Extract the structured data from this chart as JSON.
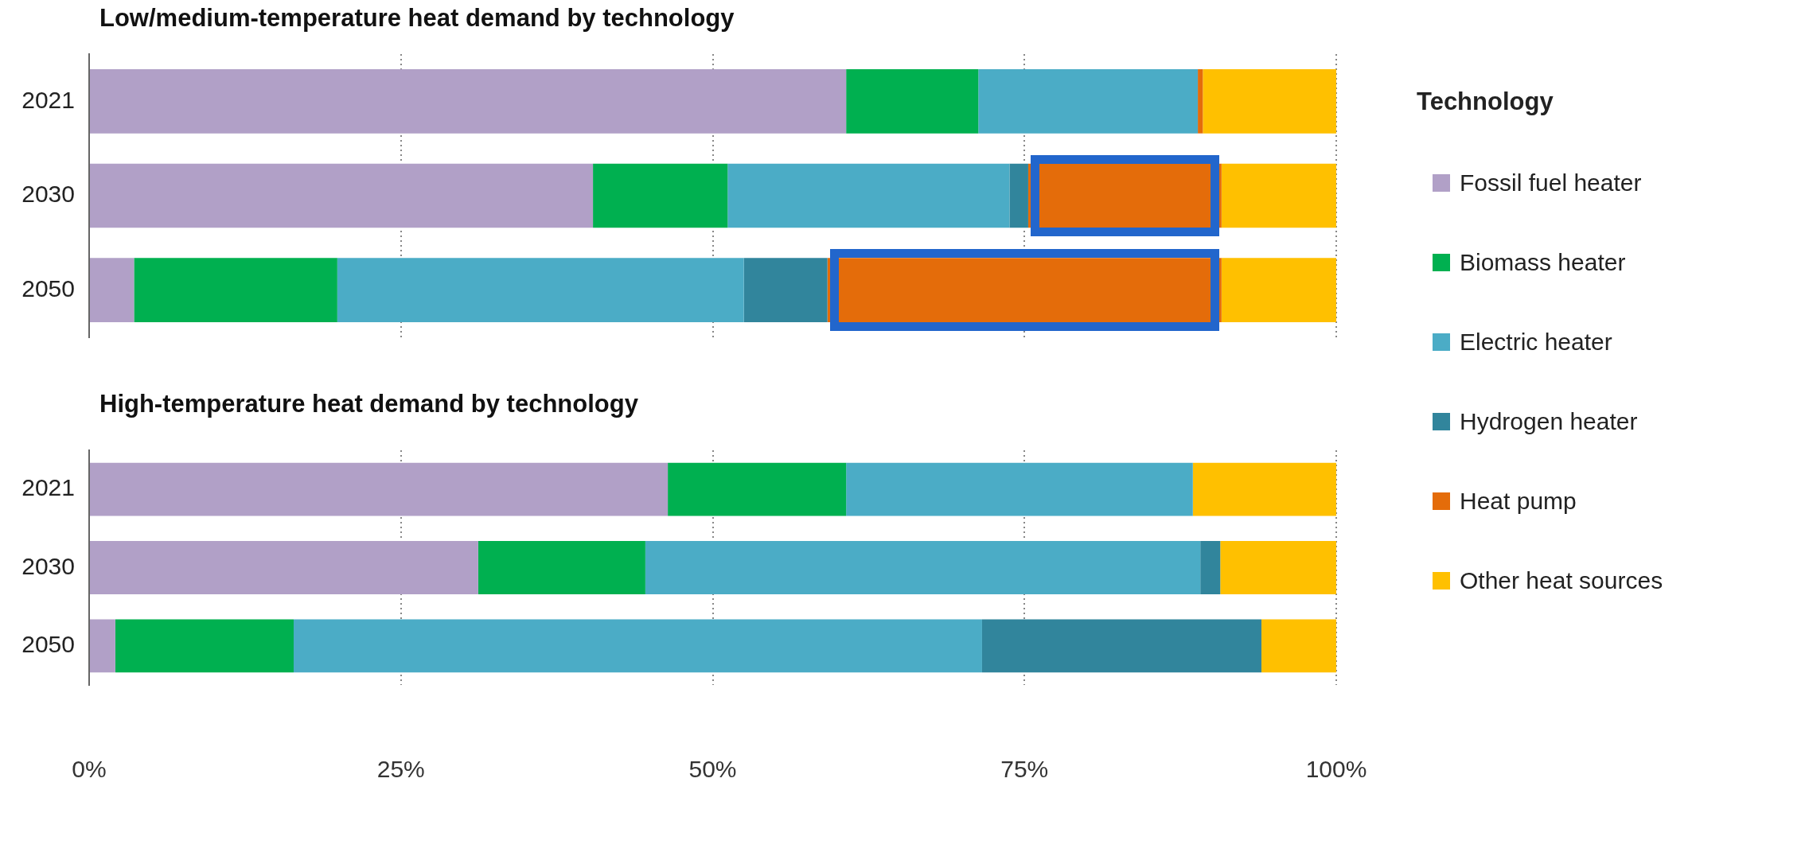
{
  "chart_data": [
    {
      "type": "bar",
      "orientation": "horizontal",
      "stacked": true,
      "title": "Low/medium-temperature heat demand by technology",
      "categories": [
        "2021",
        "2030",
        "2050"
      ],
      "legend_title": "Technology",
      "legend": "right",
      "grid": "x",
      "tick_labels": "y",
      "xlim": [
        0,
        100
      ],
      "xticks": [
        0,
        25,
        50,
        75,
        100
      ],
      "series": [
        {
          "name": "Fossil fuel heater",
          "color": "#b1a0c7",
          "values": [
            60.7,
            40.4,
            3.6
          ]
        },
        {
          "name": "Biomass heater",
          "color": "#00b050",
          "values": [
            10.6,
            10.8,
            16.3
          ]
        },
        {
          "name": "Electric heater",
          "color": "#4bacc6",
          "values": [
            17.6,
            22.6,
            32.6
          ]
        },
        {
          "name": "Hydrogen heater",
          "color": "#31859c",
          "values": [
            0,
            1.5,
            6.7
          ]
        },
        {
          "name": "Heat pump",
          "color": "#e46c0a",
          "values": [
            0.4,
            15.5,
            31.6
          ]
        },
        {
          "name": "Other heat sources",
          "color": "#ffc000",
          "values": [
            10.7,
            9.2,
            9.2
          ]
        }
      ]
    },
    {
      "type": "bar",
      "orientation": "horizontal",
      "stacked": true,
      "title": "High-temperature heat demand by technology",
      "categories": [
        "2021",
        "2030",
        "2050"
      ],
      "grid": "x",
      "xlim": [
        0,
        100
      ],
      "xticks": [
        {
          "value": 0,
          "label": "0%"
        },
        {
          "value": 25,
          "label": "25%"
        },
        {
          "value": 50,
          "label": "50%"
        },
        {
          "value": 75,
          "label": "75%"
        },
        {
          "value": 100,
          "label": "100%"
        }
      ],
      "series": [
        {
          "color": "#b1a0c7",
          "values": [
            46.4,
            31.2,
            2.1
          ]
        },
        {
          "color": "#00b050",
          "values": [
            14.3,
            13.4,
            14.3
          ]
        },
        {
          "color": "#4bacc6",
          "values": [
            27.8,
            44.5,
            55.2
          ]
        },
        {
          "color": "#31859c",
          "values": [
            0,
            1.6,
            22.4
          ]
        },
        {
          "color": "#e46c0a",
          "values": [
            0,
            0,
            0
          ]
        },
        {
          "color": "#ffc000",
          "values": [
            11.5,
            9.3,
            6.0
          ]
        }
      ]
    }
  ]
}
